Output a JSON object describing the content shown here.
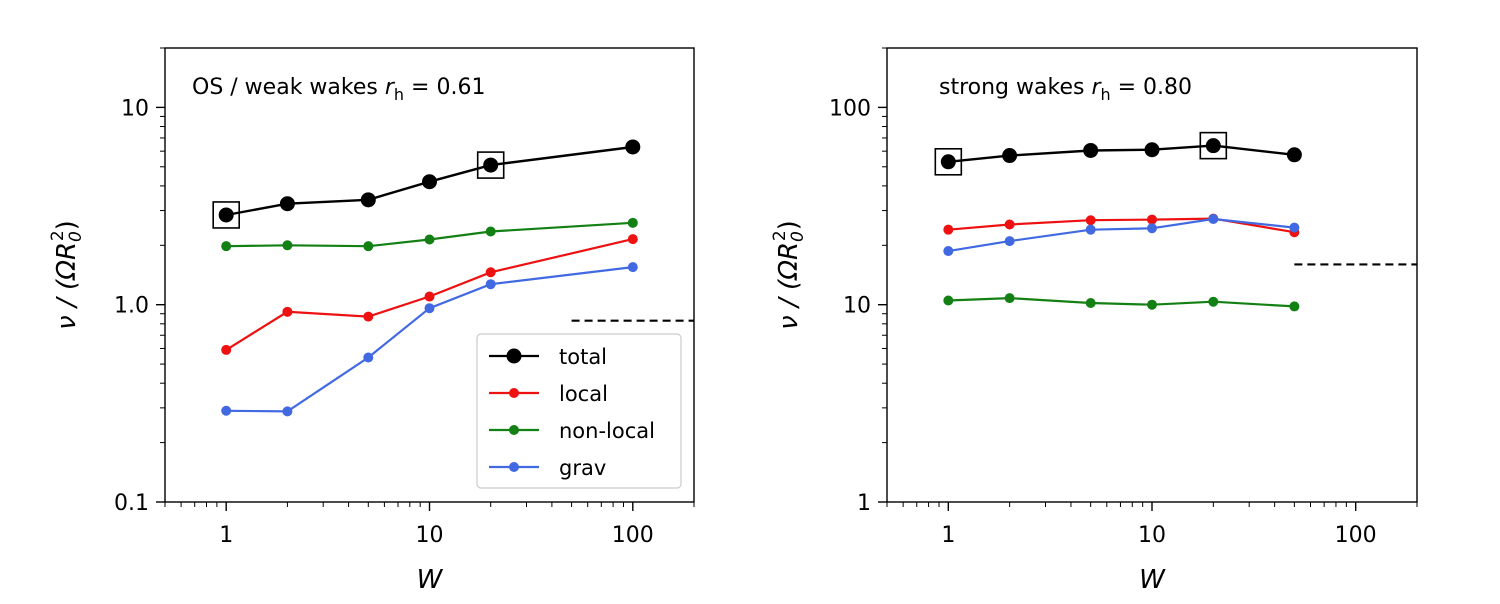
{
  "chart_data": [
    {
      "type": "line",
      "annotation": {
        "text": "OS / weak wakes ",
        "var": "r",
        "sub": "h",
        "tail": " = 0.61"
      },
      "xlabel": "W",
      "ylabel": {
        "main": "ν / (ΩR",
        "sub": "0",
        "sup": "2",
        "close": ")"
      },
      "xscale": "log",
      "yscale": "log",
      "xlim": [
        0.5,
        200
      ],
      "ylim": [
        0.1,
        20
      ],
      "xticks": [
        1,
        10,
        100
      ],
      "xtick_labels": [
        "1",
        "10",
        "100"
      ],
      "yticks": [
        0.1,
        1.0,
        10
      ],
      "ytick_labels": [
        "0.1",
        "1.0",
        "10"
      ],
      "series": [
        {
          "name": "total",
          "color": "#000000",
          "x": [
            1,
            2,
            5,
            10,
            20,
            100
          ],
          "y": [
            2.85,
            3.25,
            3.4,
            4.2,
            5.1,
            6.3
          ]
        },
        {
          "name": "local",
          "color": "#ee1111",
          "x": [
            1,
            2,
            5,
            10,
            20,
            100
          ],
          "y": [
            0.59,
            0.92,
            0.87,
            1.1,
            1.46,
            2.15
          ]
        },
        {
          "name": "non-local",
          "color": "#138013",
          "x": [
            1,
            2,
            5,
            10,
            20,
            100
          ],
          "y": [
            1.98,
            2.0,
            1.98,
            2.14,
            2.35,
            2.6
          ]
        },
        {
          "name": "grav",
          "color": "#4169e1",
          "x": [
            1,
            2,
            5,
            10,
            20,
            100
          ],
          "y": [
            0.29,
            0.288,
            0.54,
            0.96,
            1.27,
            1.55
          ]
        }
      ],
      "highlighted_points": [
        {
          "x": 1,
          "y": 2.85
        },
        {
          "x": 20,
          "y": 5.1
        }
      ],
      "reference_line": {
        "x": [
          50,
          200
        ],
        "y": 0.83,
        "style": "dashed"
      },
      "legend": {
        "position": "lower right",
        "entries": [
          "total",
          "local",
          "non-local",
          "grav"
        ]
      }
    },
    {
      "type": "line",
      "annotation": {
        "text": "strong wakes ",
        "var": "r",
        "sub": "h",
        "tail": " = 0.80"
      },
      "xlabel": "W",
      "ylabel": {
        "main": "ν / (ΩR",
        "sub": "0",
        "sup": "2",
        "close": ")"
      },
      "xscale": "log",
      "yscale": "log",
      "xlim": [
        0.5,
        200
      ],
      "ylim": [
        1,
        200
      ],
      "xticks": [
        1,
        10,
        100
      ],
      "xtick_labels": [
        "1",
        "10",
        "100"
      ],
      "yticks": [
        1,
        10,
        100
      ],
      "ytick_labels": [
        "1",
        "10",
        "100"
      ],
      "series": [
        {
          "name": "total",
          "color": "#000000",
          "x": [
            1,
            2,
            5,
            10,
            20,
            50
          ],
          "y": [
            53,
            57,
            60.5,
            61,
            64,
            57.5
          ]
        },
        {
          "name": "local",
          "color": "#ee1111",
          "x": [
            1,
            2,
            5,
            10,
            20,
            50
          ],
          "y": [
            24,
            25.5,
            26.8,
            27,
            27.3,
            23.3
          ]
        },
        {
          "name": "non-local",
          "color": "#138013",
          "x": [
            1,
            2,
            5,
            10,
            20,
            50
          ],
          "y": [
            10.5,
            10.8,
            10.2,
            10.0,
            10.35,
            9.8
          ]
        },
        {
          "name": "grav",
          "color": "#4169e1",
          "x": [
            1,
            2,
            5,
            10,
            20,
            50
          ],
          "y": [
            18.7,
            21,
            24,
            24.4,
            27.2,
            24.6
          ]
        }
      ],
      "highlighted_points": [
        {
          "x": 1,
          "y": 53
        },
        {
          "x": 20,
          "y": 64
        }
      ],
      "reference_line": {
        "x": [
          50,
          200
        ],
        "y": 16,
        "style": "dashed"
      }
    }
  ]
}
